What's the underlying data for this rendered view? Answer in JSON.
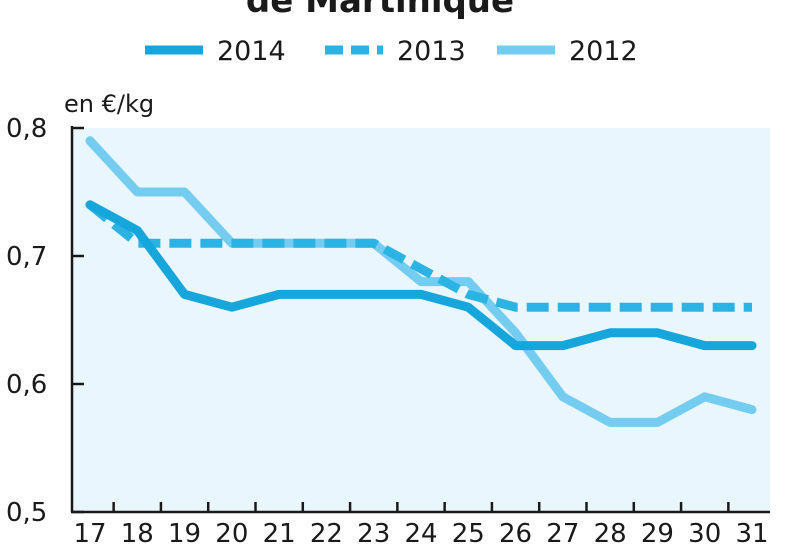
{
  "chart_data": {
    "type": "line",
    "title": "de Martinique",
    "ylabel": "en €/kg",
    "xlabel": "",
    "ylim": [
      0.5,
      0.8
    ],
    "yticks": [
      "0,5",
      "0,6",
      "0,7",
      "0,8"
    ],
    "yticks_values": [
      0.5,
      0.6,
      0.7,
      0.8
    ],
    "categories": [
      "17",
      "18",
      "19",
      "20",
      "21",
      "22",
      "23",
      "24",
      "25",
      "26",
      "27",
      "28",
      "29",
      "30",
      "31"
    ],
    "legend_position": "top",
    "grid": false,
    "series": [
      {
        "name": "2014",
        "color": "#16a6dc",
        "dash": "solid",
        "values": [
          0.74,
          0.72,
          0.67,
          0.66,
          0.67,
          0.67,
          0.67,
          0.67,
          0.66,
          0.63,
          0.63,
          0.64,
          0.64,
          0.63,
          0.63
        ]
      },
      {
        "name": "2013",
        "color": "#2bb3e4",
        "dash": "dashed",
        "values": [
          0.74,
          0.71,
          0.71,
          0.71,
          0.71,
          0.71,
          0.71,
          0.69,
          0.67,
          0.66,
          0.66,
          0.66,
          0.66,
          0.66,
          0.66
        ]
      },
      {
        "name": "2012",
        "color": "#74cdf0",
        "dash": "solid",
        "values": [
          0.79,
          0.75,
          0.75,
          0.71,
          0.71,
          0.71,
          0.71,
          0.68,
          0.68,
          0.64,
          0.59,
          0.57,
          0.57,
          0.59,
          0.58
        ]
      }
    ]
  },
  "colors": {
    "plot_background": "#e9f6fd",
    "axis": "#1a1a1a"
  }
}
